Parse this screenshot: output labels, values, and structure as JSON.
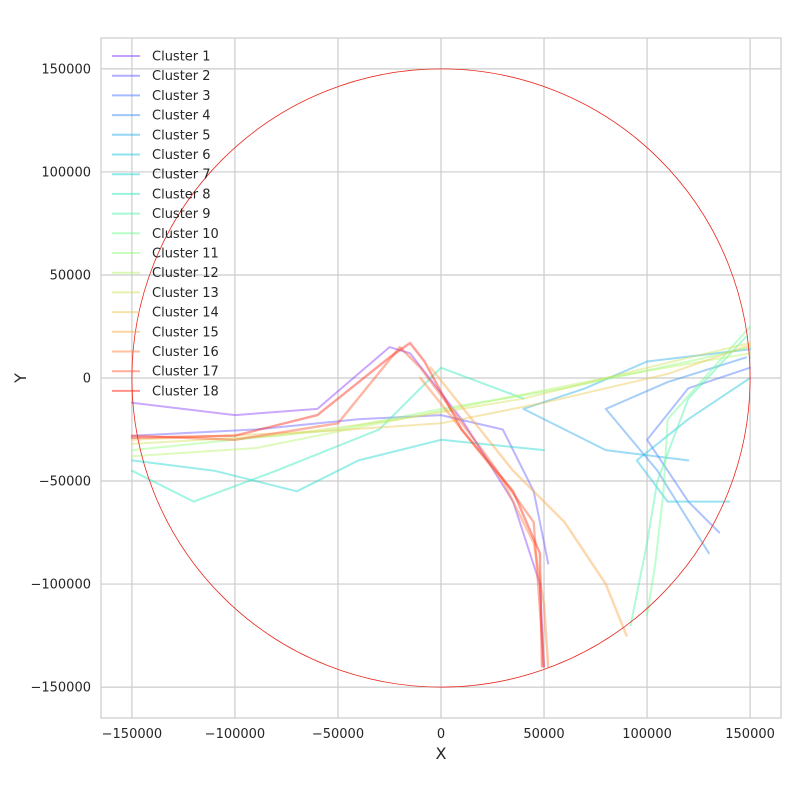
{
  "chart_data": {
    "type": "line",
    "title": "",
    "xlabel": "X",
    "ylabel": "Y",
    "xlim": [
      -165000,
      165000
    ],
    "ylim": [
      -165000,
      165000
    ],
    "xticks": [
      -150000,
      -100000,
      -50000,
      0,
      50000,
      100000,
      150000
    ],
    "yticks": [
      -150000,
      -100000,
      -50000,
      0,
      50000,
      100000,
      150000
    ],
    "xtick_labels": [
      "−150000",
      "−100000",
      "−50000",
      "0",
      "50000",
      "100000",
      "150000"
    ],
    "ytick_labels": [
      "−150000",
      "−100000",
      "−50000",
      "0",
      "50000",
      "100000",
      "150000"
    ],
    "grid": true,
    "legend_position": "top-left",
    "boundary_circle": {
      "center": [
        0,
        0
      ],
      "radius": 150000,
      "color": "#e8271d"
    },
    "series": [
      {
        "name": "Cluster 1",
        "color": "#8a3ffc",
        "points": [
          [
            -150000,
            -12000
          ],
          [
            -100000,
            -18000
          ],
          [
            -60000,
            -15000
          ],
          [
            -25000,
            15000
          ],
          [
            -15000,
            12000
          ],
          [
            10000,
            -20000
          ],
          [
            35000,
            -60000
          ],
          [
            48000,
            -100000
          ],
          [
            50000,
            -140000
          ]
        ]
      },
      {
        "name": "Cluster 2",
        "color": "#6a5cff",
        "points": [
          [
            -150000,
            -28000
          ],
          [
            -90000,
            -25000
          ],
          [
            -40000,
            -20000
          ],
          [
            0,
            -18000
          ],
          [
            30000,
            -25000
          ],
          [
            45000,
            -55000
          ],
          [
            52000,
            -90000
          ]
        ]
      },
      {
        "name": "Cluster 3",
        "color": "#4b78ff",
        "points": [
          [
            150000,
            5000
          ],
          [
            120000,
            -5000
          ],
          [
            100000,
            -30000
          ],
          [
            120000,
            -60000
          ],
          [
            135000,
            -75000
          ]
        ]
      },
      {
        "name": "Cluster 4",
        "color": "#3c92f0",
        "points": [
          [
            148000,
            10000
          ],
          [
            110000,
            -2000
          ],
          [
            80000,
            -15000
          ],
          [
            105000,
            -45000
          ],
          [
            130000,
            -85000
          ]
        ]
      },
      {
        "name": "Cluster 5",
        "color": "#2aaeea",
        "points": [
          [
            150000,
            14000
          ],
          [
            100000,
            8000
          ],
          [
            70000,
            -5000
          ],
          [
            40000,
            -15000
          ],
          [
            80000,
            -35000
          ],
          [
            120000,
            -40000
          ]
        ]
      },
      {
        "name": "Cluster 6",
        "color": "#20c4e0",
        "points": [
          [
            150000,
            0
          ],
          [
            120000,
            -20000
          ],
          [
            95000,
            -40000
          ],
          [
            110000,
            -60000
          ],
          [
            140000,
            -60000
          ]
        ]
      },
      {
        "name": "Cluster 7",
        "color": "#1ed8d0",
        "points": [
          [
            -150000,
            -40000
          ],
          [
            -110000,
            -45000
          ],
          [
            -70000,
            -55000
          ],
          [
            -40000,
            -40000
          ],
          [
            0,
            -30000
          ],
          [
            50000,
            -35000
          ]
        ]
      },
      {
        "name": "Cluster 8",
        "color": "#2ee8bc",
        "points": [
          [
            -150000,
            -45000
          ],
          [
            -120000,
            -60000
          ],
          [
            -80000,
            -45000
          ],
          [
            -30000,
            -25000
          ],
          [
            0,
            5000
          ],
          [
            40000,
            -10000
          ]
        ]
      },
      {
        "name": "Cluster 9",
        "color": "#4ef5a8",
        "points": [
          [
            148000,
            20000
          ],
          [
            120000,
            -10000
          ],
          [
            105000,
            -50000
          ],
          [
            100000,
            -80000
          ],
          [
            92000,
            -120000
          ]
        ]
      },
      {
        "name": "Cluster 10",
        "color": "#6ffc92",
        "points": [
          [
            150000,
            25000
          ],
          [
            110000,
            -20000
          ],
          [
            108000,
            -55000
          ],
          [
            104000,
            -90000
          ],
          [
            100000,
            -115000
          ]
        ]
      },
      {
        "name": "Cluster 11",
        "color": "#94fe7a",
        "points": [
          [
            -150000,
            -35000
          ],
          [
            -100000,
            -30000
          ],
          [
            -50000,
            -25000
          ],
          [
            0,
            -15000
          ],
          [
            60000,
            -5000
          ],
          [
            120000,
            8000
          ],
          [
            150000,
            15000
          ]
        ]
      },
      {
        "name": "Cluster 12",
        "color": "#b6f56a",
        "points": [
          [
            -150000,
            -38000
          ],
          [
            -90000,
            -34000
          ],
          [
            -30000,
            -22000
          ],
          [
            20000,
            -12000
          ],
          [
            80000,
            0
          ],
          [
            150000,
            12000
          ]
        ]
      },
      {
        "name": "Cluster 13",
        "color": "#d2e35e",
        "points": [
          [
            -150000,
            -32000
          ],
          [
            -80000,
            -28000
          ],
          [
            -20000,
            -20000
          ],
          [
            40000,
            -10000
          ],
          [
            100000,
            5000
          ],
          [
            150000,
            17000
          ]
        ]
      },
      {
        "name": "Cluster 14",
        "color": "#ebc954",
        "points": [
          [
            -150000,
            -30000
          ],
          [
            -60000,
            -26000
          ],
          [
            0,
            -22000
          ],
          [
            50000,
            -12000
          ],
          [
            110000,
            2000
          ],
          [
            150000,
            16000
          ]
        ]
      },
      {
        "name": "Cluster 15",
        "color": "#fca94a",
        "points": [
          [
            -5000,
            5000
          ],
          [
            15000,
            -20000
          ],
          [
            35000,
            -45000
          ],
          [
            60000,
            -70000
          ],
          [
            80000,
            -100000
          ],
          [
            90000,
            -125000
          ]
        ]
      },
      {
        "name": "Cluster 16",
        "color": "#ff8440",
        "points": [
          [
            -10000,
            0
          ],
          [
            10000,
            -25000
          ],
          [
            30000,
            -50000
          ],
          [
            45000,
            -80000
          ],
          [
            50000,
            -110000
          ],
          [
            52000,
            -140000
          ]
        ]
      },
      {
        "name": "Cluster 17",
        "color": "#ff5c33",
        "points": [
          [
            -150000,
            -28000
          ],
          [
            -100000,
            -30000
          ],
          [
            -50000,
            -22000
          ],
          [
            -20000,
            15000
          ],
          [
            -10000,
            5000
          ],
          [
            20000,
            -35000
          ],
          [
            45000,
            -70000
          ],
          [
            50000,
            -140000
          ]
        ]
      },
      {
        "name": "Cluster 18",
        "color": "#ff2a1a",
        "points": [
          [
            -150000,
            -29000
          ],
          [
            -100000,
            -28000
          ],
          [
            -60000,
            -18000
          ],
          [
            -25000,
            10000
          ],
          [
            -15000,
            17000
          ],
          [
            -8000,
            8000
          ],
          [
            10000,
            -25000
          ],
          [
            35000,
            -55000
          ],
          [
            48000,
            -85000
          ],
          [
            49000,
            -140000
          ]
        ]
      }
    ]
  }
}
